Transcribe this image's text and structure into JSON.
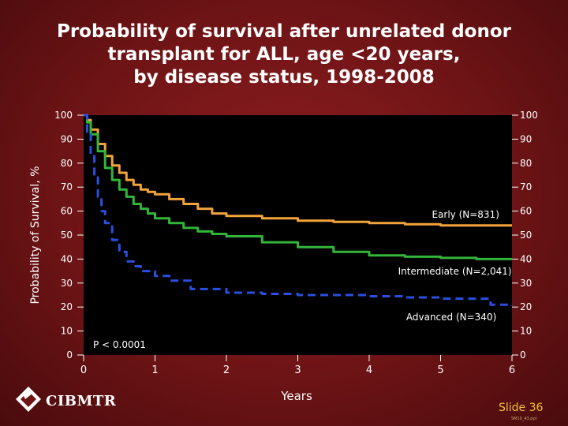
{
  "slide": {
    "title_lines": [
      "Probability of survival after unrelated donor",
      "transplant for ALL, age <20 years,",
      "by disease status, 1998-2008"
    ],
    "logo_text": "CIBMTR",
    "slide_number": "Slide 36",
    "file_name": "SM10_43.ppt"
  },
  "chart_data": {
    "type": "line",
    "title": "Probability of survival after unrelated donor transplant for ALL, age <20 years, by disease status, 1998-2008",
    "xlabel": "Years",
    "ylabel": "Probability of Survival, %",
    "xlim": [
      0,
      6
    ],
    "ylim": [
      0,
      100
    ],
    "x_ticks": [
      "0",
      "1",
      "2",
      "3",
      "4",
      "5",
      "6"
    ],
    "y_ticks": [
      "0",
      "10",
      "20",
      "30",
      "40",
      "50",
      "60",
      "70",
      "80",
      "90",
      "100"
    ],
    "annotation": "P < 0.0001",
    "grid": false,
    "series": [
      {
        "name": "Early (N=831)",
        "color": "#f2a33a",
        "dash": "solid",
        "x": [
          0,
          0.05,
          0.1,
          0.2,
          0.3,
          0.4,
          0.5,
          0.6,
          0.7,
          0.8,
          0.9,
          1.0,
          1.2,
          1.4,
          1.6,
          1.8,
          2.0,
          2.5,
          3.0,
          3.5,
          4.0,
          4.5,
          5.0,
          5.5,
          6.0
        ],
        "y": [
          100,
          98,
          94,
          88,
          83,
          79,
          76,
          73,
          71,
          69,
          68,
          67,
          65,
          63,
          61,
          59,
          58,
          57,
          56,
          55.5,
          55,
          54.5,
          54,
          54,
          54
        ]
      },
      {
        "name": "Intermediate (N=2,041)",
        "color": "#33b53a",
        "dash": "solid",
        "x": [
          0,
          0.05,
          0.1,
          0.2,
          0.3,
          0.4,
          0.5,
          0.6,
          0.7,
          0.8,
          0.9,
          1.0,
          1.2,
          1.4,
          1.6,
          1.8,
          2.0,
          2.5,
          3.0,
          3.5,
          4.0,
          4.5,
          5.0,
          5.5,
          6.0
        ],
        "y": [
          100,
          97,
          92,
          85,
          78,
          73,
          69,
          66,
          63,
          61,
          59,
          57,
          55,
          53,
          51.5,
          50.5,
          49.5,
          47,
          45,
          43,
          41.5,
          41,
          40.5,
          40,
          40
        ]
      },
      {
        "name": "Advanced (N=340)",
        "color": "#2a4fe0",
        "dash": "dashed",
        "x": [
          0,
          0.05,
          0.1,
          0.15,
          0.2,
          0.25,
          0.3,
          0.4,
          0.5,
          0.6,
          0.7,
          0.8,
          1.0,
          1.2,
          1.5,
          2.0,
          2.5,
          3.0,
          4.0,
          4.5,
          5.0,
          5.5,
          5.7,
          6.0
        ],
        "y": [
          100,
          93,
          83,
          74,
          66,
          60,
          55,
          48,
          43,
          39,
          37,
          35,
          33,
          31,
          27.5,
          26,
          25.5,
          25,
          24.5,
          24,
          23.5,
          23.5,
          21,
          20.5
        ]
      }
    ],
    "series_labels": [
      {
        "text": "Early (N=831)",
        "at_x": 5.35,
        "at_y": 57.2
      },
      {
        "text": "Intermediate (N=2,041)",
        "at_x": 5.2,
        "at_y": 33.5
      },
      {
        "text": "Advanced (N=340)",
        "at_x": 5.15,
        "at_y": 14.4
      }
    ]
  }
}
